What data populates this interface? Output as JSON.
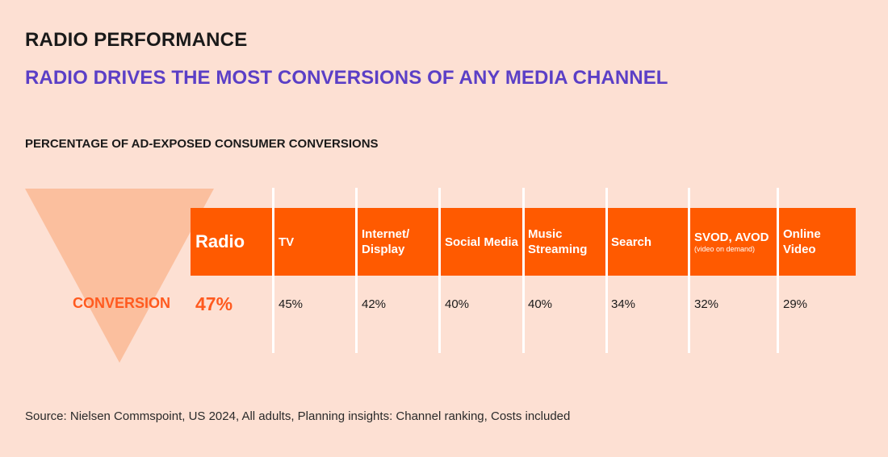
{
  "header": {
    "title": "RADIO PERFORMANCE",
    "subtitle": "RADIO DRIVES THE MOST CONVERSIONS OF ANY MEDIA CHANNEL"
  },
  "chart_data": {
    "type": "table",
    "title": "PERCENTAGE OF AD-EXPOSED CONSUMER CONVERSIONS",
    "row_label": "CONVERSION",
    "categories": [
      "Radio",
      "TV",
      "Internet/ Display",
      "Social Media",
      "Music Streaming",
      "Search",
      "SVOD, AVOD",
      "Online Video"
    ],
    "category_notes": [
      "",
      "",
      "",
      "",
      "",
      "",
      "(video on demand)",
      ""
    ],
    "values": [
      47,
      45,
      42,
      40,
      40,
      34,
      32,
      29
    ],
    "value_labels": [
      "47%",
      "45%",
      "42%",
      "40%",
      "40%",
      "34%",
      "32%",
      "29%"
    ],
    "unit": "%",
    "highlight": "Radio"
  },
  "footer": {
    "source": "Source: Nielsen Commspoint, US 2024, All adults, Planning insights: Channel ranking, Costs included"
  },
  "colors": {
    "background": "#fde0d3",
    "accent": "#ff5a00",
    "subtitle": "#5b3fc6",
    "funnel": "#fbbd9b"
  }
}
